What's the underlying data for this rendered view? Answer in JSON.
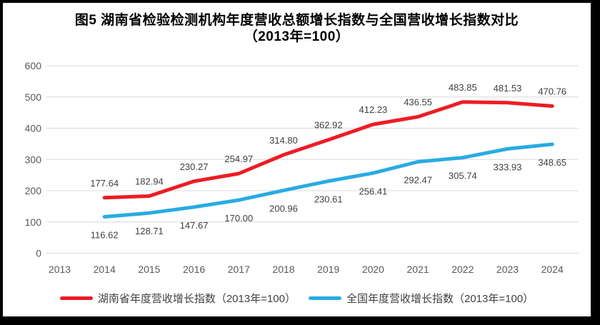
{
  "chart_data": {
    "type": "line",
    "title": "图5 湖南省检验检测机构年度营收总额增长指数与全国营收增长指数对比",
    "subtitle": "（2013年=100）",
    "categories": [
      "2013",
      "2014",
      "2015",
      "2016",
      "2017",
      "2018",
      "2019",
      "2020",
      "2021",
      "2022",
      "2023",
      "2024"
    ],
    "ylim": [
      0,
      600
    ],
    "ytick_step": 100,
    "grid": "horizontal-only",
    "legend_position": "bottom",
    "label_decimals": 2,
    "series": [
      {
        "name": "湖南省年度营收增长指数（2013年=100）",
        "color": "#ED1C24",
        "start_index": 1,
        "label_position": "above",
        "values": [
          177.64,
          182.94,
          230.27,
          254.97,
          314.8,
          362.92,
          412.23,
          436.55,
          483.85,
          481.53,
          470.76
        ]
      },
      {
        "name": "全国年度营收增长指数（2013年=100）",
        "color": "#29ABE2",
        "start_index": 1,
        "label_position": "below",
        "values": [
          116.62,
          128.71,
          147.67,
          170.0,
          200.96,
          230.61,
          256.41,
          292.47,
          305.74,
          333.93,
          348.65
        ]
      }
    ],
    "colors": {
      "gridline": "#D9D9D9",
      "axis_label": "#595959",
      "data_label": "#404040",
      "legend_text": "#404040",
      "frame_border": "#000000",
      "background": "#FFFFFF"
    }
  }
}
